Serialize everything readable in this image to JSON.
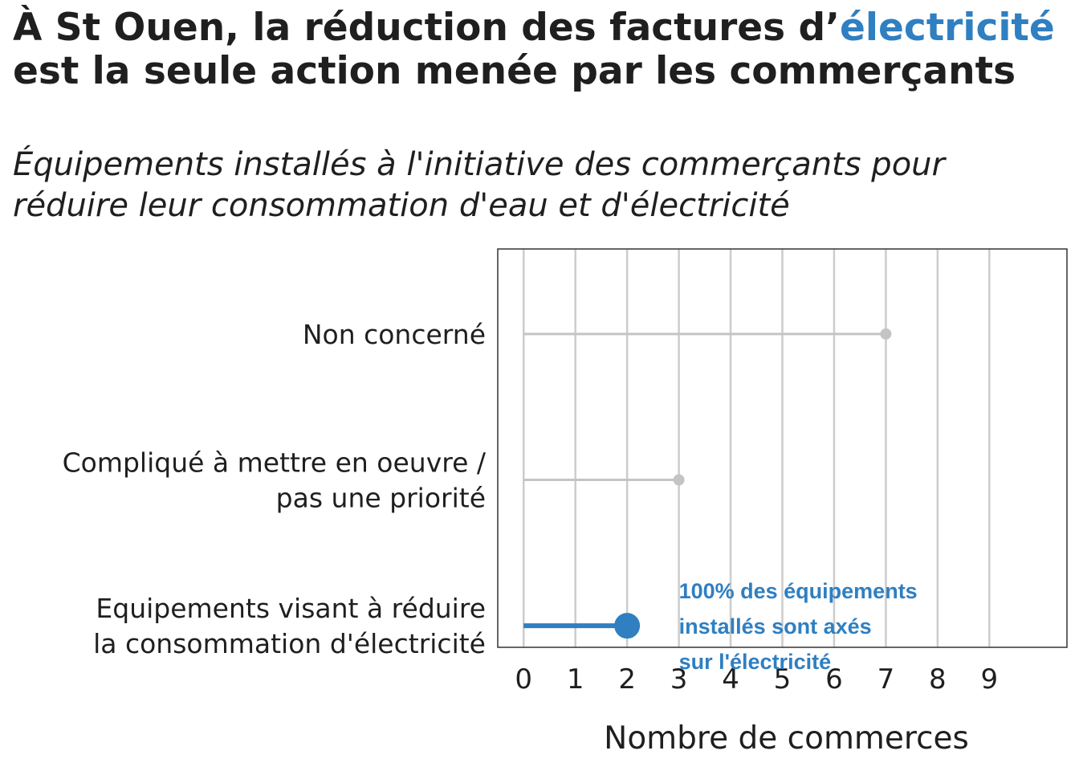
{
  "title": {
    "part1": "À St Ouen, la réduction des factures d’",
    "highlight": "électricité",
    "part2": " est la seule action menée par les commerçants",
    "highlight_color": "#2f7fc1"
  },
  "subtitle": "Équipements installés à l'initiative des commerçants pour réduire leur consommation d'eau et d'électricité",
  "chart_data": {
    "type": "lollipop",
    "orientation": "horizontal",
    "categories": [
      [
        "Non concerné"
      ],
      [
        "Compliqué à mettre en oeuvre /",
        "pas une priorité"
      ],
      [
        "Equipements visant à réduire",
        "la consommation d'électricité"
      ]
    ],
    "values": [
      7,
      3,
      2
    ],
    "colors": [
      "#c4c4c4",
      "#c4c4c4",
      "#2f7fc1"
    ],
    "highlighted_index": 2,
    "xlabel": "Nombre de commerces",
    "xticks": [
      0,
      1,
      2,
      3,
      4,
      5,
      6,
      7,
      8,
      9
    ],
    "xlim": [
      -0.5,
      10.5
    ],
    "grid": "vertical",
    "annotation": {
      "lines": [
        "100% des équipements",
        "installés sont axés",
        "sur l'électricité"
      ],
      "x": 3,
      "category_index": 2,
      "color": "#2f7fc1"
    }
  }
}
